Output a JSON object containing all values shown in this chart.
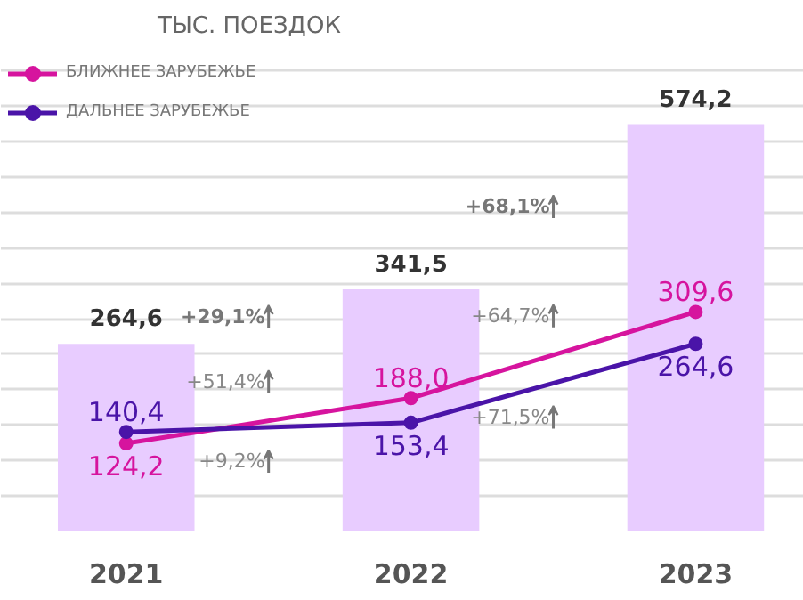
{
  "chart_data": {
    "type": "bar",
    "title": "ТЫС. ПОЕЗДОК",
    "categories": [
      "2021",
      "2022",
      "2023"
    ],
    "values": [
      264.6,
      341.5,
      574.2
    ],
    "color": "#e8ccff",
    "series": [
      {
        "type": "line",
        "name": "БЛИЖНЕЕ ЗАРУБЕЖЬЕ",
        "color": "#d6149e",
        "values": [
          124.2,
          188.0,
          309.6
        ],
        "value_labels": [
          "124,2",
          "188,0",
          "309,6"
        ]
      },
      {
        "type": "line",
        "name": "ДАЛЬНЕЕ ЗАРУБЕЖЬЕ",
        "color": "#4a14a8",
        "values": [
          140.4,
          153.4,
          264.6
        ],
        "value_labels": [
          "140,4",
          "153,4",
          "264,6"
        ]
      }
    ],
    "value_labels": [
      "264,6",
      "341,5",
      "574,2"
    ],
    "annotations": [
      "+29,1%",
      "+51,4%",
      "+9,2%",
      "+68,1%",
      "+64,7%",
      "+71,5%"
    ],
    "grid": "y",
    "tick_labels": "x",
    "legend": "top left",
    "marker": "circle",
    "line_style": "solid"
  }
}
